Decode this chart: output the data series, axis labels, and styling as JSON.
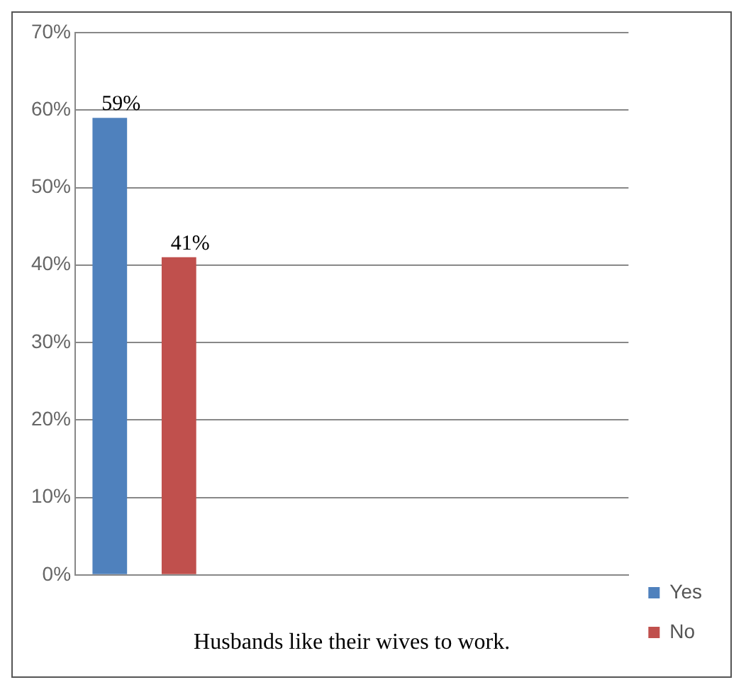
{
  "chart_data": {
    "type": "bar",
    "xlabel": "Husbands like their wives to work.",
    "categories": [
      null,
      null,
      null,
      null
    ],
    "series": [
      {
        "name": "Yes",
        "color": "#4f81bd",
        "values": [
          59,
          null,
          null,
          null
        ],
        "value_labels": [
          "59%",
          null,
          null,
          null
        ]
      },
      {
        "name": "No",
        "color": "#c0504d",
        "values": [
          41,
          null,
          null,
          null
        ],
        "value_labels": [
          "41%",
          null,
          null,
          null
        ]
      }
    ],
    "ylim": [
      0,
      70
    ],
    "yticks": [
      {
        "value": 0,
        "label": "0%"
      },
      {
        "value": 10,
        "label": "10%"
      },
      {
        "value": 20,
        "label": "20%"
      },
      {
        "value": 30,
        "label": "30%"
      },
      {
        "value": 40,
        "label": "40%"
      },
      {
        "value": 50,
        "label": "50%"
      },
      {
        "value": 60,
        "label": "60%"
      },
      {
        "value": 70,
        "label": "70%"
      }
    ],
    "grid": "y",
    "legend": "bottom right"
  }
}
